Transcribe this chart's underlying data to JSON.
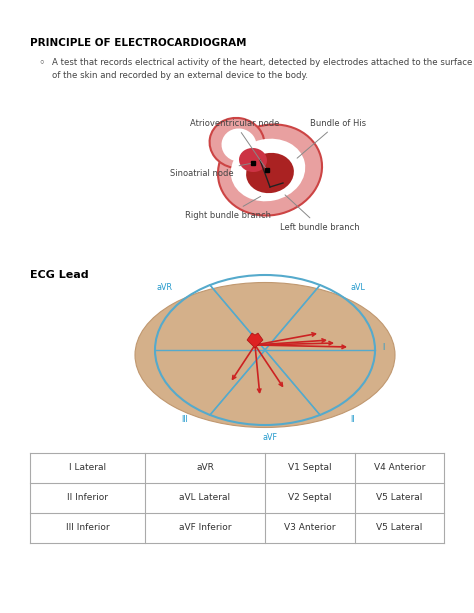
{
  "title": "PRINCIPLE OF ELECTROCARDIOGRAM",
  "bullet_text_line1": "A test that records electrical activity of the heart, detected by electrodes attached to the surface",
  "bullet_text_line2": "of the skin and recorded by an external device to the body.",
  "ecg_lead_label": "ECG Lead",
  "table_data": [
    [
      "I Lateral",
      "aVR",
      "V1 Septal",
      "V4 Anterior"
    ],
    [
      "II Inferior",
      "aVL Lateral",
      "V2 Septal",
      "V5 Lateral"
    ],
    [
      "III Inferior",
      "aVF Inferior",
      "V3 Anterior",
      "V5 Lateral"
    ]
  ],
  "bg_color": "#ffffff",
  "title_color": "#000000",
  "text_color": "#444444",
  "heart_pink": "#e8a0a0",
  "heart_red": "#cc3333",
  "heart_dark": "#aa2222",
  "heart_border": "#cc4444",
  "skin_color": "#d4b08a",
  "lead_circle_color": "#55aacc",
  "lead_arrow_color": "#cc2222",
  "label_color": "#2299cc",
  "border_color": "#aaaaaa"
}
